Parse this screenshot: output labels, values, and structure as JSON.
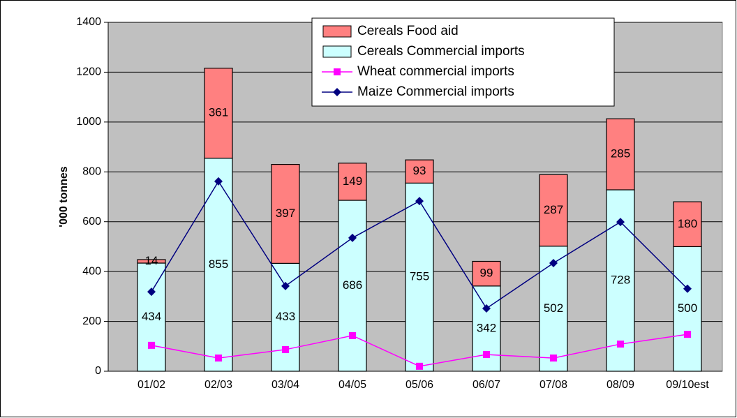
{
  "chart_data": {
    "type": "stacked-bar-line",
    "y_label": "'000 tonnes",
    "categories": [
      "01/02",
      "02/03",
      "03/04",
      "04/05",
      "05/06",
      "06/07",
      "07/08",
      "08/09",
      "09/10est"
    ],
    "ylim": [
      0,
      1400
    ],
    "yticks": [
      0,
      200,
      400,
      600,
      800,
      1000,
      1200,
      1400
    ],
    "grid": true,
    "series": [
      {
        "name": "Cereals Food aid",
        "kind": "bar",
        "color": "#ff8080",
        "values": [
          14,
          361,
          397,
          149,
          93,
          99,
          287,
          285,
          180
        ]
      },
      {
        "name": "Cereals Commercial imports",
        "kind": "bar",
        "color": "#ccffff",
        "values": [
          434,
          855,
          433,
          686,
          755,
          342,
          502,
          728,
          500
        ]
      },
      {
        "name": "Wheat commercial imports",
        "kind": "line",
        "marker": "square",
        "color": "#ff00ff",
        "values": [
          104,
          53,
          87,
          143,
          20,
          67,
          53,
          109,
          148
        ]
      },
      {
        "name": "Maize Commercial imports",
        "kind": "line",
        "marker": "diamond",
        "color": "#000080",
        "values": [
          319,
          762,
          342,
          535,
          683,
          252,
          434,
          599,
          331
        ]
      }
    ]
  }
}
